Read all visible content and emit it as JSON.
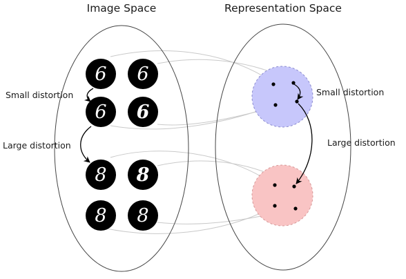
{
  "titles": {
    "image_space": "Image Space",
    "representation_space": "Representation Space"
  },
  "labels": {
    "left_small": "Small distortion",
    "left_large": "Large distortion",
    "right_small": "Small distortion",
    "right_large": "Large distortion"
  },
  "digits": {
    "top_group": [
      "6",
      "6",
      "6",
      "6"
    ],
    "bottom_group": [
      "8",
      "8",
      "8",
      "8"
    ]
  },
  "colors": {
    "cluster_six_fill": "#c7c7fb",
    "cluster_six_stroke": "#8c8ccf",
    "cluster_eight_fill": "#f9c4c4",
    "cluster_eight_stroke": "#d79999"
  }
}
